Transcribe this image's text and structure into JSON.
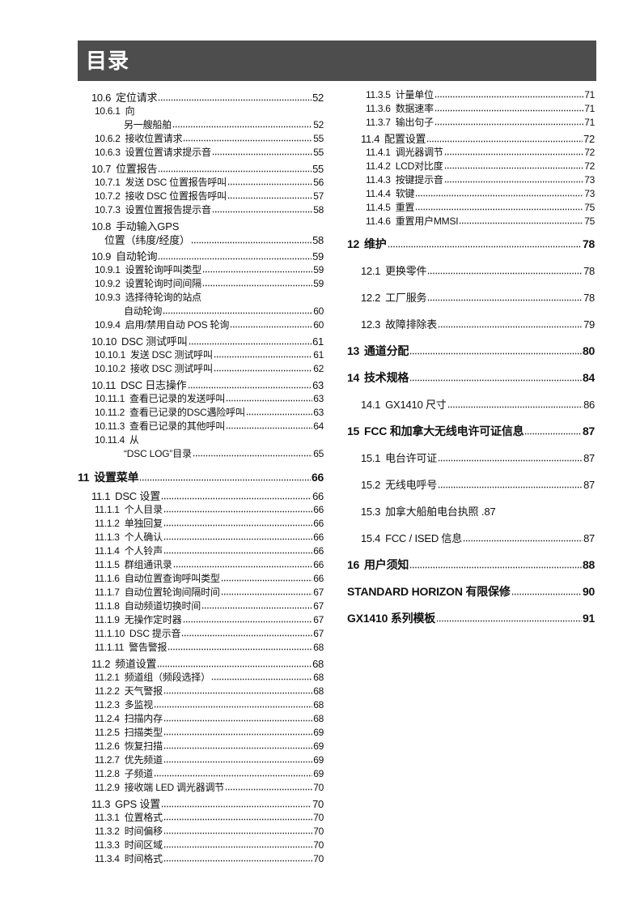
{
  "header": {
    "title": "目录",
    "background": "#4d4d4d"
  },
  "left_column": [
    {
      "level": 2,
      "num": "10.6",
      "title": "定位请求",
      "page": "52"
    },
    {
      "level": 3,
      "num": "10.6.1",
      "title": "向",
      "cont": "另一艘船舶",
      "page": "52"
    },
    {
      "level": 3,
      "num": "10.6.2",
      "title": "接收位置请求",
      "page": "55"
    },
    {
      "level": 3,
      "num": "10.6.3",
      "title": "设置位置请求提示音",
      "page": "55"
    },
    {
      "level": 2,
      "num": "10.7",
      "title": "位置报告",
      "page": "55"
    },
    {
      "level": 3,
      "num": "10.7.1",
      "title": "发送 DSC 位置报告呼叫",
      "page": "56"
    },
    {
      "level": 3,
      "num": "10.7.2",
      "title": "接收 DSC 位置报告呼叫",
      "page": "57"
    },
    {
      "level": 3,
      "num": "10.7.3",
      "title": "设置位置报告提示音",
      "page": "58"
    },
    {
      "level": 2,
      "num": "10.8",
      "title": "手动输入GPS",
      "cont": "位置（纬度/经度）",
      "page": "58"
    },
    {
      "level": 2,
      "num": "10.9",
      "title": "自动轮询",
      "page": "59"
    },
    {
      "level": 3,
      "num": "10.9.1",
      "title": "设置轮询呼叫类型",
      "page": "59"
    },
    {
      "level": 3,
      "num": "10.9.2",
      "title": "设置轮询时间间隔",
      "page": "59"
    },
    {
      "level": 3,
      "num": "10.9.3",
      "title": "选择待轮询的站点",
      "cont": "自动轮询",
      "page": "60"
    },
    {
      "level": 3,
      "num": "10.9.4",
      "title": "启用/禁用自动 POS 轮询",
      "page": "60"
    },
    {
      "level": 2,
      "num": "10.10",
      "title": "DSC 测试呼叫",
      "page": "61"
    },
    {
      "level": 3,
      "num": "10.10.1",
      "title": "发送 DSC 测试呼叫",
      "page": "61"
    },
    {
      "level": 3,
      "num": "10.10.2",
      "title": "接收 DSC 测试呼叫",
      "page": "62"
    },
    {
      "level": 2,
      "num": "10.11",
      "title": "DSC 日志操作",
      "page": "63"
    },
    {
      "level": 3,
      "num": "10.11.1",
      "title": "查看已记录的发送呼叫",
      "page": "63"
    },
    {
      "level": 3,
      "num": "10.11.2",
      "title": "查看已记录的DSC遇险呼叫",
      "page": "63"
    },
    {
      "level": 3,
      "num": "10.11.3",
      "title": "查看已记录的其他呼叫",
      "page": "64"
    },
    {
      "level": 3,
      "num": "10.11.4",
      "title": "从",
      "cont": "“DSC LOG”目录",
      "page": "65"
    },
    {
      "level": 1,
      "num": "11",
      "title": "设置菜单",
      "page": "66"
    },
    {
      "level": 2,
      "num": "11.1",
      "title": "DSC 设置",
      "page": "66"
    },
    {
      "level": 3,
      "num": "11.1.1",
      "title": "个人目录",
      "page": "66"
    },
    {
      "level": 3,
      "num": "11.1.2",
      "title": "单独回复",
      "page": "66"
    },
    {
      "level": 3,
      "num": "11.1.3",
      "title": "个人确认",
      "page": "66"
    },
    {
      "level": 3,
      "num": "11.1.4",
      "title": "个人铃声",
      "page": "66"
    },
    {
      "level": 3,
      "num": "11.1.5",
      "title": "群组通讯录",
      "page": "66"
    },
    {
      "level": 3,
      "num": "11.1.6",
      "title": "自动位置查询呼叫类型",
      "page": "66"
    },
    {
      "level": 3,
      "num": "11.1.7",
      "title": "自动位置轮询间隔时间",
      "page": "67"
    },
    {
      "level": 3,
      "num": "11.1.8",
      "title": "自动频道切换时间",
      "page": "67"
    },
    {
      "level": 3,
      "num": "11.1.9",
      "title": "无操作定时器",
      "page": "67"
    },
    {
      "level": 3,
      "num": "11.1.10",
      "title": "DSC 提示音",
      "page": "67"
    },
    {
      "level": 3,
      "num": "11.1.11",
      "title": "警告警报",
      "page": "68"
    },
    {
      "level": 2,
      "num": "11.2",
      "title": "频道设置",
      "page": "68"
    },
    {
      "level": 3,
      "num": "11.2.1",
      "title": "频道组（频段选择）",
      "page": "68"
    },
    {
      "level": 3,
      "num": "11.2.2",
      "title": "天气警报",
      "page": "68"
    },
    {
      "level": 3,
      "num": "11.2.3",
      "title": "多监视",
      "page": "68"
    },
    {
      "level": 3,
      "num": "11.2.4",
      "title": "扫描内存",
      "page": "68"
    },
    {
      "level": 3,
      "num": "11.2.5",
      "title": "扫描类型",
      "page": "69"
    },
    {
      "level": 3,
      "num": "11.2.6",
      "title": "恢复扫描",
      "page": "69"
    },
    {
      "level": 3,
      "num": "11.2.7",
      "title": "优先频道",
      "page": "69"
    },
    {
      "level": 3,
      "num": "11.2.8",
      "title": "子频道",
      "page": "69"
    },
    {
      "level": 3,
      "num": "11.2.9",
      "title": "接收端 LED 调光器调节",
      "page": "70"
    },
    {
      "level": 2,
      "num": "11.3",
      "title": "GPS 设置",
      "page": "70"
    },
    {
      "level": 3,
      "num": "11.3.1",
      "title": "位置格式",
      "page": "70"
    },
    {
      "level": 3,
      "num": "11.3.2",
      "title": "时间偏移",
      "page": "70"
    },
    {
      "level": 3,
      "num": "11.3.3",
      "title": "时间区域",
      "page": "70"
    },
    {
      "level": 3,
      "num": "11.3.4",
      "title": "时间格式",
      "page": "70"
    }
  ],
  "right_column": [
    {
      "level": 3,
      "num": "11.3.5",
      "title": "计量单位",
      "page": "71"
    },
    {
      "level": 3,
      "num": "11.3.6",
      "title": "数据速率",
      "page": "71"
    },
    {
      "level": 3,
      "num": "11.3.7",
      "title": "输出句子",
      "page": "71"
    },
    {
      "level": 2,
      "num": "11.4",
      "title": "配置设置",
      "page": "72"
    },
    {
      "level": 3,
      "num": "11.4.1",
      "title": "调光器调节",
      "page": "72"
    },
    {
      "level": 3,
      "num": "11.4.2",
      "title": "LCD对比度",
      "page": "72"
    },
    {
      "level": 3,
      "num": "11.4.3",
      "title": "按键提示音",
      "page": "73"
    },
    {
      "level": 3,
      "num": "11.4.4",
      "title": "软键",
      "page": "73"
    },
    {
      "level": 3,
      "num": "11.4.5",
      "title": "重置",
      "page": "75"
    },
    {
      "level": 3,
      "num": "11.4.6",
      "title": "重置用户MMSI",
      "page": "75"
    },
    {
      "level": 1,
      "num": "12",
      "title": "维护",
      "page": "78"
    },
    {
      "level": 2,
      "num": "12.1",
      "title": "更换零件",
      "page": "78"
    },
    {
      "level": 2,
      "num": "12.2",
      "title": "工厂服务",
      "page": "78"
    },
    {
      "level": 2,
      "num": "12.3",
      "title": "故障排除表",
      "page": "79"
    },
    {
      "level": 1,
      "num": "13",
      "title": "通道分配",
      "page": "80"
    },
    {
      "level": 1,
      "num": "14",
      "title": "技术规格",
      "page": "84"
    },
    {
      "level": 2,
      "num": "14.1",
      "title": "GX1410 尺寸",
      "page": "86"
    },
    {
      "level": 1,
      "num": "15",
      "title": "FCC 和加拿大无线电许可证信息",
      "page": "87"
    },
    {
      "level": 2,
      "num": "15.1",
      "title": "电台许可证",
      "page": "87"
    },
    {
      "level": 2,
      "num": "15.2",
      "title": "无线电呼号",
      "page": "87"
    },
    {
      "level": 2,
      "num": "15.3",
      "title": "加拿大船舶电台执照",
      "page": "87",
      "leader": false
    },
    {
      "level": 2,
      "num": "15.4",
      "title": "FCC / ISED 信息",
      "page": "87"
    },
    {
      "level": 1,
      "num": "16",
      "title": "用户须知",
      "page": "88"
    },
    {
      "level": 1,
      "num": "",
      "title": "STANDARD HORIZON 有限保修",
      "page": "90"
    },
    {
      "level": 1,
      "num": "",
      "title": "GX1410 系列模板",
      "page": "91"
    }
  ]
}
